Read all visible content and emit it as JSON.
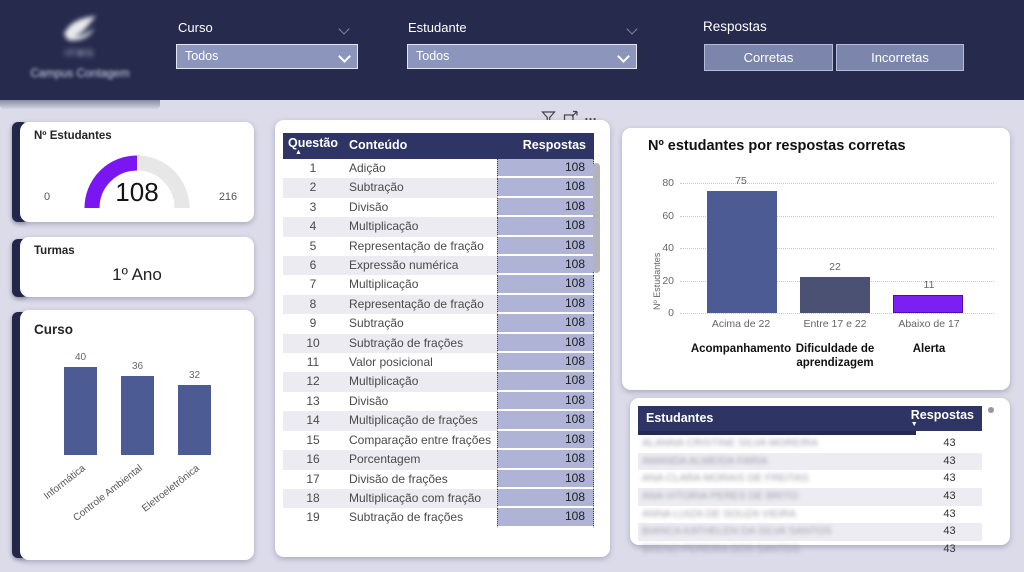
{
  "header": {
    "brand": "IFMG",
    "campus": "Campus Contagem",
    "curso": {
      "label": "Curso",
      "value": "Todos"
    },
    "estudante": {
      "label": "Estudante",
      "value": "Todos"
    },
    "respostas": {
      "label": "Respostas",
      "corretas": "Corretas",
      "incorretas": "Incorretas"
    }
  },
  "visual_toolbar": {
    "more": "…"
  },
  "gauge_card": {
    "title": "Nº Estudantes",
    "value": "108",
    "min": "0",
    "max": "216"
  },
  "turmas_card": {
    "title": "Turmas",
    "value": "1º Ano"
  },
  "curso_card": {
    "title": "Curso"
  },
  "questoes_table": {
    "columns": {
      "questao": "Questão",
      "conteudo": "Conteúdo",
      "respostas": "Respostas"
    },
    "sort_asc_icon": "▲",
    "rows": [
      [
        "1",
        "Adição",
        "108"
      ],
      [
        "2",
        "Subtração",
        "108"
      ],
      [
        "3",
        "Divisão",
        "108"
      ],
      [
        "4",
        "Multiplicação",
        "108"
      ],
      [
        "5",
        "Representação de fração",
        "108"
      ],
      [
        "6",
        "Expressão numérica",
        "108"
      ],
      [
        "7",
        "Multiplicação",
        "108"
      ],
      [
        "8",
        "Representação de fração",
        "108"
      ],
      [
        "9",
        "Subtração",
        "108"
      ],
      [
        "10",
        "Subtração de frações",
        "108"
      ],
      [
        "11",
        "Valor posicional",
        "108"
      ],
      [
        "12",
        "Multiplicação",
        "108"
      ],
      [
        "13",
        "Divisão",
        "108"
      ],
      [
        "14",
        "Multiplicação de frações",
        "108"
      ],
      [
        "15",
        "Comparação entre frações",
        "108"
      ],
      [
        "16",
        "Porcentagem",
        "108"
      ],
      [
        "17",
        "Divisão de frações",
        "108"
      ],
      [
        "18",
        "Multiplicação com fração",
        "108"
      ],
      [
        "19",
        "Subtração de frações",
        "108"
      ]
    ]
  },
  "estudantes_table": {
    "columns": {
      "estudantes": "Estudantes",
      "respostas": "Respostas"
    },
    "sort_desc_icon": "▼",
    "rows": [
      {
        "name": "ALANNA CRISTINE SILVA MOREIRA",
        "respostas": "43"
      },
      {
        "name": "AMANDA ALMEIDA FARIA",
        "respostas": "43"
      },
      {
        "name": "ANA CLARA MORAIS DE FREITAS",
        "respostas": "43"
      },
      {
        "name": "ANA VITORIA PERES DE BRITO",
        "respostas": "43"
      },
      {
        "name": "ANNA LUIZA DE SOUZA VIEIRA",
        "respostas": "43"
      },
      {
        "name": "BIANCA KATHELEN DA SILVA SANTOS",
        "respostas": "43"
      },
      {
        "name": "BRENO PEREIRA DOS SANTOS",
        "respostas": "43"
      }
    ]
  },
  "chart_data": [
    {
      "id": "estudantes_gauge",
      "type": "gauge",
      "title": "Nº Estudantes",
      "value": 108,
      "min": 0,
      "max": 216,
      "fill_color": "#7a16f2",
      "track_color": "#e7e7e7"
    },
    {
      "id": "curso_bar",
      "type": "bar",
      "title": "Curso",
      "categories": [
        "Informática",
        "Controle Ambiental",
        "Eletroeletrônica"
      ],
      "values": [
        40,
        36,
        32
      ],
      "bar_color": "#4d5b94",
      "ylim": [
        0,
        40
      ]
    },
    {
      "id": "respostas_bar",
      "type": "bar",
      "title": "Nº estudantes por respostas corretas",
      "ylabel": "Nº Estudantes",
      "ylim": [
        0,
        80
      ],
      "yticks": [
        0,
        20,
        40,
        60,
        80
      ],
      "grid": "dotted horizontal",
      "categories": [
        "Acima de 22",
        "Entre 17 e 22",
        "Abaixo de 17"
      ],
      "values": [
        75,
        22,
        11
      ],
      "bar_colors": [
        "#4d5b94",
        "#4b5173",
        "#7b1ff2"
      ],
      "group_labels": [
        "Acompanhamento",
        "Dificuldade de aprendizagem",
        "Alerta"
      ]
    }
  ]
}
